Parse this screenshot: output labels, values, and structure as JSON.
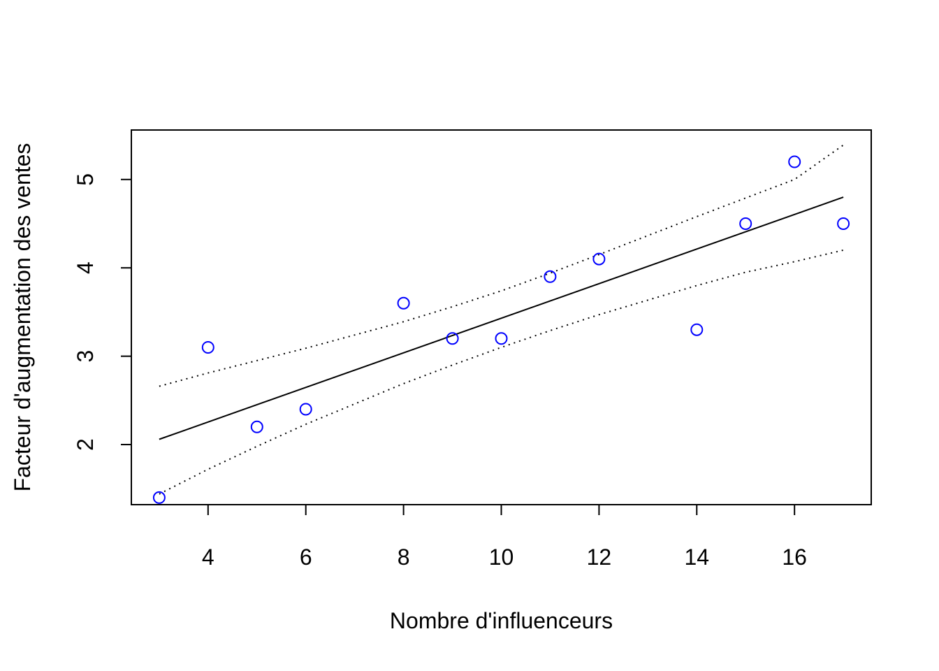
{
  "chart_data": {
    "type": "scatter",
    "title": "",
    "xlabel": "Nombre d'influenceurs",
    "ylabel": "Facteur d'augmentation des ventes",
    "xlim": [
      2.43,
      17.57
    ],
    "ylim": [
      1.32,
      5.56
    ],
    "x_ticks": [
      4,
      6,
      8,
      10,
      12,
      14,
      16
    ],
    "y_ticks": [
      2,
      3,
      4,
      5
    ],
    "grid": false,
    "legend": "none",
    "series": [
      {
        "type": "scatter",
        "x": [
          3,
          4,
          5,
          6,
          8,
          9,
          10,
          11,
          12,
          14,
          15,
          16,
          17
        ],
        "y": [
          1.4,
          3.1,
          2.2,
          2.4,
          3.6,
          3.2,
          3.2,
          3.9,
          4.1,
          3.3,
          4.5,
          5.2,
          4.5
        ],
        "color": "#0000ff",
        "marker": "open-circle"
      },
      {
        "type": "line",
        "style": "solid",
        "x": [
          3,
          17
        ],
        "y": [
          2.06,
          4.8
        ],
        "color": "#000000"
      },
      {
        "type": "line",
        "style": "dotted",
        "x": [
          3,
          4,
          5,
          6,
          8,
          9,
          10,
          11,
          12,
          14,
          15,
          16,
          17
        ],
        "y": [
          2.66,
          2.81,
          2.95,
          3.09,
          3.39,
          3.56,
          3.74,
          3.94,
          4.15,
          4.58,
          4.79,
          5.0,
          5.39
        ],
        "color": "#000000"
      },
      {
        "type": "line",
        "style": "dotted",
        "x": [
          3,
          4,
          5,
          6,
          8,
          9,
          10,
          11,
          12,
          14,
          15,
          16,
          17
        ],
        "y": [
          1.44,
          1.72,
          1.98,
          2.23,
          2.69,
          2.9,
          3.1,
          3.29,
          3.47,
          3.8,
          3.95,
          4.07,
          4.2
        ],
        "color": "#000000"
      }
    ]
  }
}
